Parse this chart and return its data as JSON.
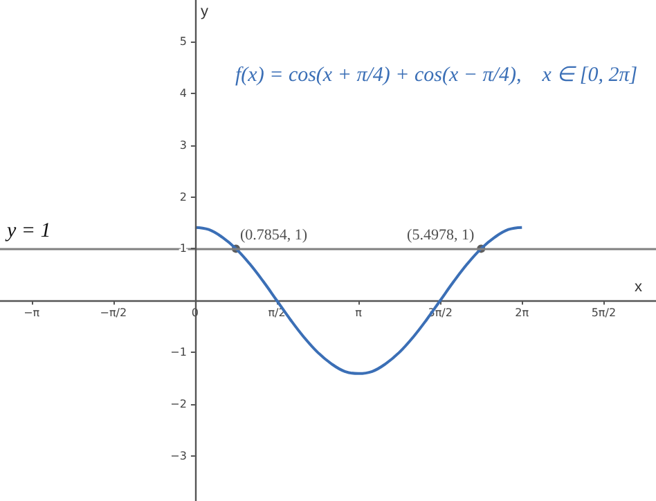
{
  "chart_data": {
    "type": "line",
    "xlabel": "x",
    "ylabel": "y",
    "annotations": [
      "f(x) = cos(x + π/4) + cos(x − π/4),    x ∈ [0, 2π]"
    ],
    "xlim": [
      -3.75,
      8.86
    ],
    "ylim": [
      -3.87,
      5.8
    ],
    "xticks": [
      {
        "value": -3.1416,
        "label": "−π"
      },
      {
        "value": -1.5708,
        "label": "−π/2"
      },
      {
        "value": 0,
        "label": "0"
      },
      {
        "value": 1.5708,
        "label": "π/2"
      },
      {
        "value": 3.1416,
        "label": "π"
      },
      {
        "value": 4.7124,
        "label": "3π/2"
      },
      {
        "value": 6.2832,
        "label": "2π"
      },
      {
        "value": 7.854,
        "label": "5π/2"
      }
    ],
    "yticks": [
      {
        "value": -3,
        "label": "−3"
      },
      {
        "value": -2,
        "label": "−2"
      },
      {
        "value": -1,
        "label": "−1"
      },
      {
        "value": 0,
        "label": null
      },
      1,
      2,
      3,
      4,
      5
    ],
    "grid": false,
    "ref_lines": [
      {
        "axis": "y",
        "value": 1,
        "label": "y = 1",
        "color": "#808080"
      }
    ],
    "series": [
      {
        "color": "#3b6fb6",
        "marker": "none",
        "x": [
          0,
          0.2618,
          0.5236,
          0.7854,
          1.0472,
          1.309,
          1.5708,
          1.8326,
          2.0944,
          2.3562,
          2.618,
          2.8798,
          3.1416,
          3.4034,
          3.6652,
          3.927,
          4.1888,
          4.4506,
          4.7124,
          4.9742,
          5.236,
          5.4978,
          5.7596,
          6.0214,
          6.2832
        ],
        "values": [
          1.41,
          1.37,
          1.22,
          1,
          0.71,
          0.37,
          0,
          -0.37,
          -0.71,
          -1,
          -1.22,
          -1.37,
          -1.41,
          -1.37,
          -1.22,
          -1,
          -0.71,
          -0.37,
          0,
          0.37,
          0.71,
          1,
          1.22,
          1.37,
          1.41
        ]
      },
      {
        "type": "scatter",
        "color": "#333333",
        "marker": "circle",
        "x": [
          0.7854,
          5.4978
        ],
        "values": [
          1,
          1
        ],
        "value_labels": [
          "(0.7854, 1)",
          "(5.4978, 1)"
        ]
      }
    ]
  }
}
